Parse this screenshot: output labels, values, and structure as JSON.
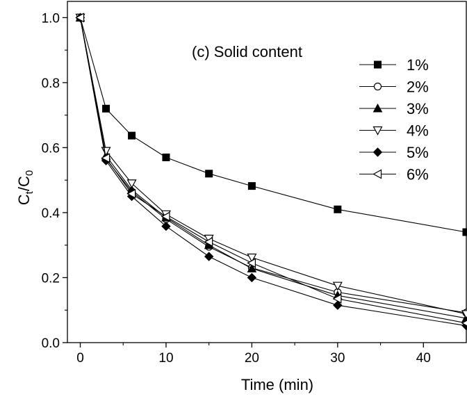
{
  "chart_data": {
    "type": "line",
    "title": "",
    "annotation": "(c) Solid content",
    "xlabel": "Time (min)",
    "ylabel_main": "C",
    "ylabel_sub1": "t",
    "ylabel_slash": "/C",
    "ylabel_sub2": "0",
    "xlim": [
      -1.5,
      45
    ],
    "ylim": [
      0,
      1.05
    ],
    "x_ticks": [
      0,
      10,
      20,
      30,
      40
    ],
    "x_tick_labels": [
      "0",
      "10",
      "20",
      "30",
      "40"
    ],
    "y_ticks": [
      0.0,
      0.2,
      0.4,
      0.6,
      0.8,
      1.0
    ],
    "y_tick_labels": [
      "0.0",
      "0.2",
      "0.4",
      "0.6",
      "0.8",
      "1.0"
    ],
    "grid": false,
    "legend_position": "top-right",
    "x": [
      0,
      3,
      6,
      10,
      15,
      20,
      30,
      45
    ],
    "series": [
      {
        "name": "1%",
        "marker": "square-filled",
        "values": [
          1.0,
          0.72,
          0.637,
          0.57,
          0.52,
          0.482,
          0.41,
          0.34
        ]
      },
      {
        "name": "2%",
        "marker": "circle-open",
        "values": [
          1.0,
          0.565,
          0.465,
          0.38,
          0.295,
          0.23,
          0.155,
          0.092
        ]
      },
      {
        "name": "3%",
        "marker": "triangle-up-filled",
        "values": [
          1.0,
          0.575,
          0.47,
          0.385,
          0.3,
          0.228,
          0.145,
          0.075
        ]
      },
      {
        "name": "4%",
        "marker": "triangle-down-open",
        "values": [
          1.0,
          0.59,
          0.49,
          0.395,
          0.32,
          0.262,
          0.175,
          0.088
        ]
      },
      {
        "name": "5%",
        "marker": "diamond-filled",
        "values": [
          1.0,
          0.56,
          0.45,
          0.358,
          0.265,
          0.2,
          0.115,
          0.052
        ]
      },
      {
        "name": "6%",
        "marker": "triangle-left-open",
        "values": [
          1.0,
          0.568,
          0.458,
          0.388,
          0.31,
          0.245,
          0.135,
          0.06
        ]
      }
    ]
  }
}
